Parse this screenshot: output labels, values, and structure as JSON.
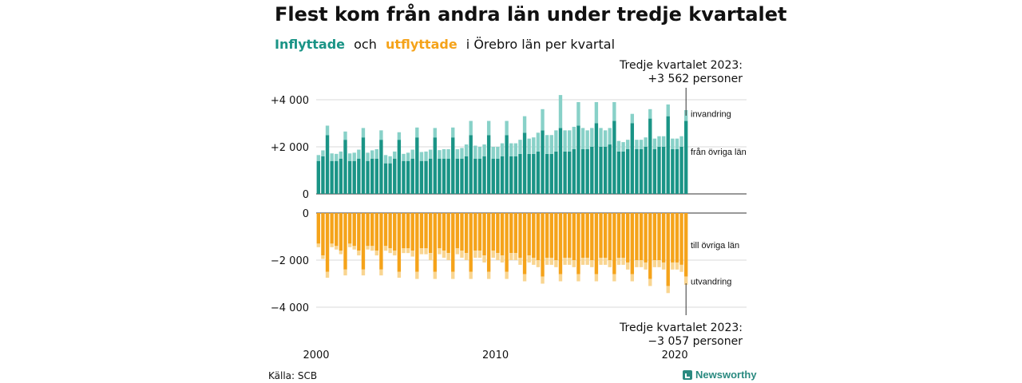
{
  "title": "Flest kom från andra län under tredje kvartalet",
  "subtitle": {
    "part1": "Inflyttade",
    "part2": "och",
    "part3": "utflyttade",
    "part4": "i Örebro län per kvartal"
  },
  "annotations": {
    "top_line1": "Tredje kvartalet 2023:",
    "top_line2": "+3 562 personer",
    "bottom_line1": "Tredje kvartalet 2023:",
    "bottom_line2": "−3 057 personer"
  },
  "source": "Källa: SCB",
  "brand": "Newsworthy",
  "colors": {
    "in_dark": "#1a9486",
    "in_light": "#88d1c8",
    "out_dark": "#f5a31a",
    "out_light": "#f9d590",
    "grid": "#d9d9d9",
    "axis": "#333333"
  },
  "chart_data": [
    {
      "type": "bar",
      "stacked": true,
      "x_start": 2000,
      "x_step": 0.25,
      "ylim": [
        0,
        4300
      ],
      "yticks": [
        {
          "v": 0,
          "label": "0"
        },
        {
          "v": 2000,
          "label": "+2 000"
        },
        {
          "v": 4000,
          "label": "+4 000"
        }
      ],
      "series_labels": [
        "från övriga län",
        "invandring"
      ],
      "series": [
        {
          "name": "från övriga län",
          "values": [
            1400,
            1600,
            2500,
            1400,
            1400,
            1500,
            2300,
            1400,
            1400,
            1500,
            2400,
            1400,
            1500,
            1500,
            2300,
            1300,
            1300,
            1500,
            2300,
            1400,
            1400,
            1500,
            2400,
            1400,
            1400,
            1500,
            2400,
            1500,
            1500,
            1500,
            2400,
            1500,
            1500,
            1600,
            2500,
            1500,
            1500,
            1600,
            2500,
            1500,
            1500,
            1600,
            2500,
            1600,
            1600,
            1700,
            2600,
            1700,
            1700,
            1800,
            2700,
            1700,
            1700,
            1800,
            2800,
            1800,
            1800,
            1900,
            2900,
            1900,
            1900,
            2000,
            3000,
            2000,
            2000,
            2100,
            3100,
            1800,
            1800,
            1900,
            3000,
            1900,
            1900,
            2000,
            3200,
            1900,
            2000,
            2000,
            3300,
            1900,
            1900,
            2000,
            3100
          ]
        },
        {
          "name": "invandring",
          "values": [
            250,
            250,
            400,
            320,
            300,
            300,
            350,
            320,
            350,
            380,
            400,
            350,
            350,
            400,
            400,
            350,
            300,
            300,
            320,
            300,
            350,
            380,
            420,
            380,
            400,
            380,
            400,
            360,
            400,
            400,
            420,
            400,
            450,
            500,
            600,
            550,
            500,
            500,
            600,
            500,
            500,
            550,
            600,
            550,
            550,
            600,
            700,
            650,
            700,
            800,
            900,
            800,
            800,
            900,
            1400,
            900,
            900,
            950,
            1000,
            900,
            800,
            800,
            900,
            800,
            700,
            700,
            800,
            450,
            400,
            400,
            400,
            400,
            400,
            400,
            400,
            450,
            450,
            450,
            500,
            450,
            450,
            450,
            460
          ]
        }
      ]
    },
    {
      "type": "bar",
      "stacked": true,
      "x_start": 2000,
      "x_step": 0.25,
      "ylim": [
        -4300,
        0
      ],
      "yticks": [
        {
          "v": 0,
          "label": "0"
        },
        {
          "v": -2000,
          "label": "−2 000"
        },
        {
          "v": -4000,
          "label": "−4 000"
        }
      ],
      "xticks": [
        {
          "v": 2000,
          "label": "2000"
        },
        {
          "v": 2010,
          "label": "2010"
        },
        {
          "v": 2020,
          "label": "2020"
        }
      ],
      "series_labels": [
        "till övriga län",
        "utvandring"
      ],
      "series": [
        {
          "name": "till övriga län",
          "values": [
            -1300,
            -1800,
            -2500,
            -1300,
            -1400,
            -1600,
            -2400,
            -1300,
            -1400,
            -1600,
            -2400,
            -1400,
            -1400,
            -1600,
            -2400,
            -1400,
            -1500,
            -1600,
            -2500,
            -1500,
            -1500,
            -1600,
            -2500,
            -1500,
            -1500,
            -1700,
            -2500,
            -1500,
            -1600,
            -1700,
            -2500,
            -1500,
            -1600,
            -1700,
            -2500,
            -1600,
            -1600,
            -1800,
            -2500,
            -1600,
            -1700,
            -1800,
            -2500,
            -1700,
            -1700,
            -1900,
            -2600,
            -1800,
            -1900,
            -2000,
            -2700,
            -1900,
            -1900,
            -2000,
            -2600,
            -1900,
            -1900,
            -2000,
            -2600,
            -1900,
            -1900,
            -2000,
            -2600,
            -1900,
            -1900,
            -2000,
            -2600,
            -1900,
            -1900,
            -2100,
            -2600,
            -2000,
            -2000,
            -2100,
            -2800,
            -2000,
            -2000,
            -2100,
            -3100,
            -2100,
            -2100,
            -2200,
            -2700
          ]
        },
        {
          "name": "utvandring",
          "values": [
            -150,
            -150,
            -250,
            -150,
            -150,
            -150,
            -250,
            -150,
            -150,
            -200,
            -250,
            -150,
            -200,
            -200,
            -250,
            -200,
            -200,
            -200,
            -250,
            -200,
            -200,
            -250,
            -300,
            -250,
            -250,
            -300,
            -300,
            -250,
            -300,
            -300,
            -300,
            -250,
            -300,
            -300,
            -300,
            -300,
            -300,
            -300,
            -300,
            -300,
            -300,
            -300,
            -300,
            -300,
            -300,
            -300,
            -300,
            -300,
            -300,
            -300,
            -300,
            -300,
            -300,
            -300,
            -300,
            -300,
            -300,
            -300,
            -300,
            -300,
            -300,
            -300,
            -300,
            -300,
            -300,
            -300,
            -300,
            -300,
            -300,
            -300,
            -300,
            -300,
            -300,
            -300,
            -300,
            -300,
            -300,
            -300,
            -300,
            -300,
            -300,
            -300,
            -350
          ]
        }
      ]
    }
  ]
}
